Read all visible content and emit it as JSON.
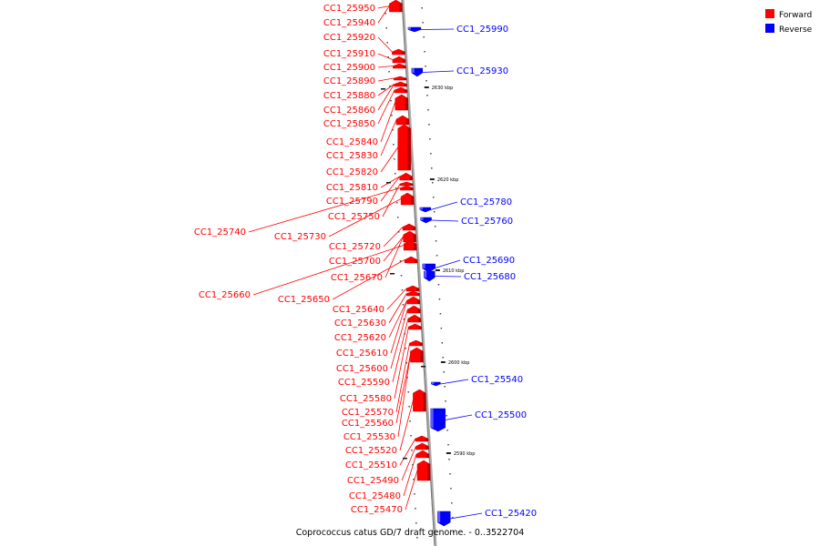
{
  "caption": "Coprococcus catus GD/7 draft genome. - 0..3522704",
  "legend": [
    {
      "label": "Forward",
      "color": "#ff0000"
    },
    {
      "label": "Reverse",
      "color": "#0000ff"
    }
  ],
  "ticks": [
    "2630 kbp",
    "2620 kbp",
    "2610 kbp",
    "2600 kbp",
    "2590 kbp"
  ],
  "forward_labels": [
    "CC1_25950",
    "CC1_25940",
    "CC1_25920",
    "CC1_25910",
    "CC1_25900",
    "CC1_25890",
    "CC1_25880",
    "CC1_25860",
    "CC1_25850",
    "CC1_25840",
    "CC1_25830",
    "CC1_25820",
    "CC1_25810",
    "CC1_25790",
    "CC1_25750",
    "CC1_25740",
    "CC1_25730",
    "CC1_25720",
    "CC1_25700",
    "CC1_25670",
    "CC1_25660",
    "CC1_25650",
    "CC1_25640",
    "CC1_25630",
    "CC1_25620",
    "CC1_25610",
    "CC1_25600",
    "CC1_25590",
    "CC1_25580",
    "CC1_25570",
    "CC1_25560",
    "CC1_25530",
    "CC1_25520",
    "CC1_25510",
    "CC1_25490",
    "CC1_25480",
    "CC1_25470"
  ],
  "reverse_labels": [
    "CC1_25990",
    "CC1_25930",
    "CC1_25780",
    "CC1_25760",
    "CC1_25690",
    "CC1_25680",
    "CC1_25540",
    "CC1_25500",
    "CC1_25420"
  ],
  "colors": {
    "forward": "#ff0000",
    "reverse": "#0000ff",
    "axis": "#999999"
  }
}
